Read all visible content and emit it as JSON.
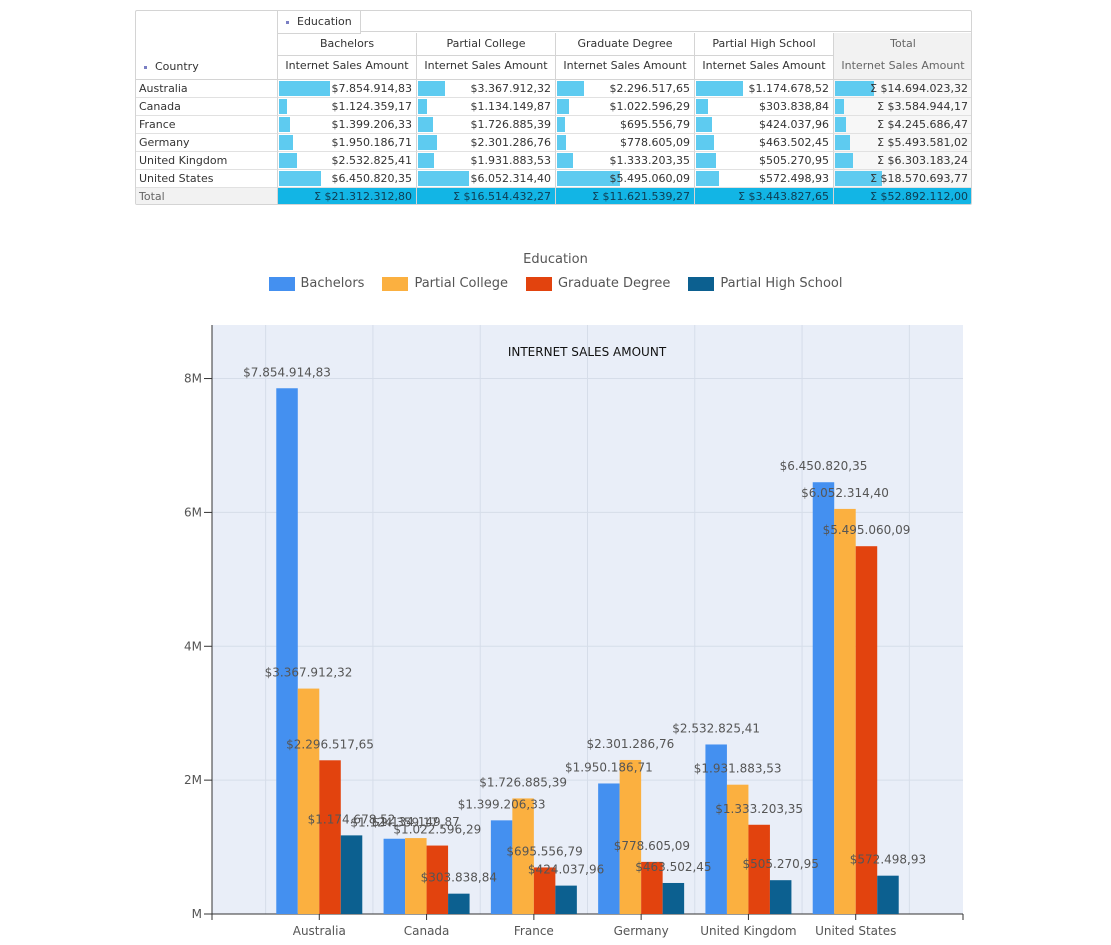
{
  "pivot": {
    "column_field": "Education",
    "row_field": "Country",
    "columns": [
      "Bachelors",
      "Partial College",
      "Graduate Degree",
      "Partial High School",
      "Total"
    ],
    "measure": "Internet Sales Amount",
    "rows": [
      {
        "country": "Australia",
        "values": [
          "$7.854.914,83",
          "$3.367.912,32",
          "$2.296.517,65",
          "$1.174.678,52",
          "Σ $14.694.023,32"
        ],
        "bars": [
          0.38,
          0.2,
          0.2,
          0.35,
          0.29
        ]
      },
      {
        "country": "Canada",
        "values": [
          "$1.124.359,17",
          "$1.134.149,87",
          "$1.022.596,29",
          "$303.838,84",
          "Σ $3.584.944,17"
        ],
        "bars": [
          0.06,
          0.07,
          0.09,
          0.09,
          0.07
        ]
      },
      {
        "country": "France",
        "values": [
          "$1.399.206,33",
          "$1.726.885,39",
          "$695.556,79",
          "$424.037,96",
          "Σ $4.245.686,47"
        ],
        "bars": [
          0.08,
          0.11,
          0.06,
          0.12,
          0.08
        ]
      },
      {
        "country": "Germany",
        "values": [
          "$1.950.186,71",
          "$2.301.286,76",
          "$778.605,09",
          "$463.502,45",
          "Σ $5.493.581,02"
        ],
        "bars": [
          0.1,
          0.14,
          0.07,
          0.13,
          0.11
        ]
      },
      {
        "country": "United Kingdom",
        "values": [
          "$2.532.825,41",
          "$1.931.883,53",
          "$1.333.203,35",
          "$505.270,95",
          "Σ $6.303.183,24"
        ],
        "bars": [
          0.13,
          0.12,
          0.12,
          0.15,
          0.13
        ]
      },
      {
        "country": "United States",
        "values": [
          "$6.450.820,35",
          "$6.052.314,40",
          "$5.495.060,09",
          "$572.498,93",
          "Σ $18.570.693,77"
        ],
        "bars": [
          0.31,
          0.38,
          0.47,
          0.17,
          0.35
        ]
      }
    ],
    "total_label": "Total",
    "totals": [
      "Σ $21.312.312,80",
      "Σ $16.514.432,27",
      "Σ $11.621.539,27",
      "Σ $3.443.827,65",
      "Σ $52.892.112,00"
    ]
  },
  "legend": {
    "title": "Education"
  },
  "colors": {
    "bachelors": "#4490f0",
    "partial_college": "#fbb040",
    "graduate_degree": "#e2430e",
    "partial_high_school": "#0c6090",
    "plot_bg": "#e9eef8",
    "table_bar": "#5ecbf0",
    "total_bar": "#12b5e5"
  },
  "chart_data": {
    "type": "bar",
    "title": "INTERNET SALES AMOUNT",
    "xlabel": "",
    "ylabel": "",
    "categories": [
      "Australia",
      "Canada",
      "France",
      "Germany",
      "United Kingdom",
      "United States"
    ],
    "ylim": [
      0,
      8800000
    ],
    "yticks": [
      0,
      2000000,
      4000000,
      6000000,
      8000000
    ],
    "ytick_labels": [
      "M",
      "2M",
      "4M",
      "6M",
      "8M"
    ],
    "grid": true,
    "legend_position": "top-center",
    "series": [
      {
        "name": "Bachelors",
        "color": "#4490f0",
        "values": [
          7854914.83,
          1124359.17,
          1399206.33,
          1950186.71,
          2532825.41,
          6450820.35
        ],
        "labels": [
          "$7.854.914,83",
          "$1.124.359,17",
          "$1.399.206,33",
          "$1.950.186,71",
          "$2.532.825,41",
          "$6.450.820,35"
        ]
      },
      {
        "name": "Partial College",
        "color": "#fbb040",
        "values": [
          3367912.32,
          1134149.87,
          1726885.39,
          2301286.76,
          1931883.53,
          6052314.4
        ],
        "labels": [
          "$3.367.912,32",
          "$1.134.149,87",
          "$1.726.885,39",
          "$2.301.286,76",
          "$1.931.883,53",
          "$6.052.314,40"
        ]
      },
      {
        "name": "Graduate Degree",
        "color": "#e2430e",
        "values": [
          2296517.65,
          1022596.29,
          695556.79,
          778605.09,
          1333203.35,
          5495060.09
        ],
        "labels": [
          "$2.296.517,65",
          "$1.022.596,29",
          "$695.556,79",
          "$778.605,09",
          "$1.333.203,35",
          "$5.495.060,09"
        ]
      },
      {
        "name": "Partial High School",
        "color": "#0c6090",
        "values": [
          1174678.52,
          303838.84,
          424037.96,
          463502.45,
          505270.95,
          572498.93
        ],
        "labels": [
          "$1.174.678,52",
          "$303.838,84",
          "$424.037,96",
          "$463.502,45",
          "$505.270,95",
          "$572.498,93"
        ]
      }
    ]
  }
}
